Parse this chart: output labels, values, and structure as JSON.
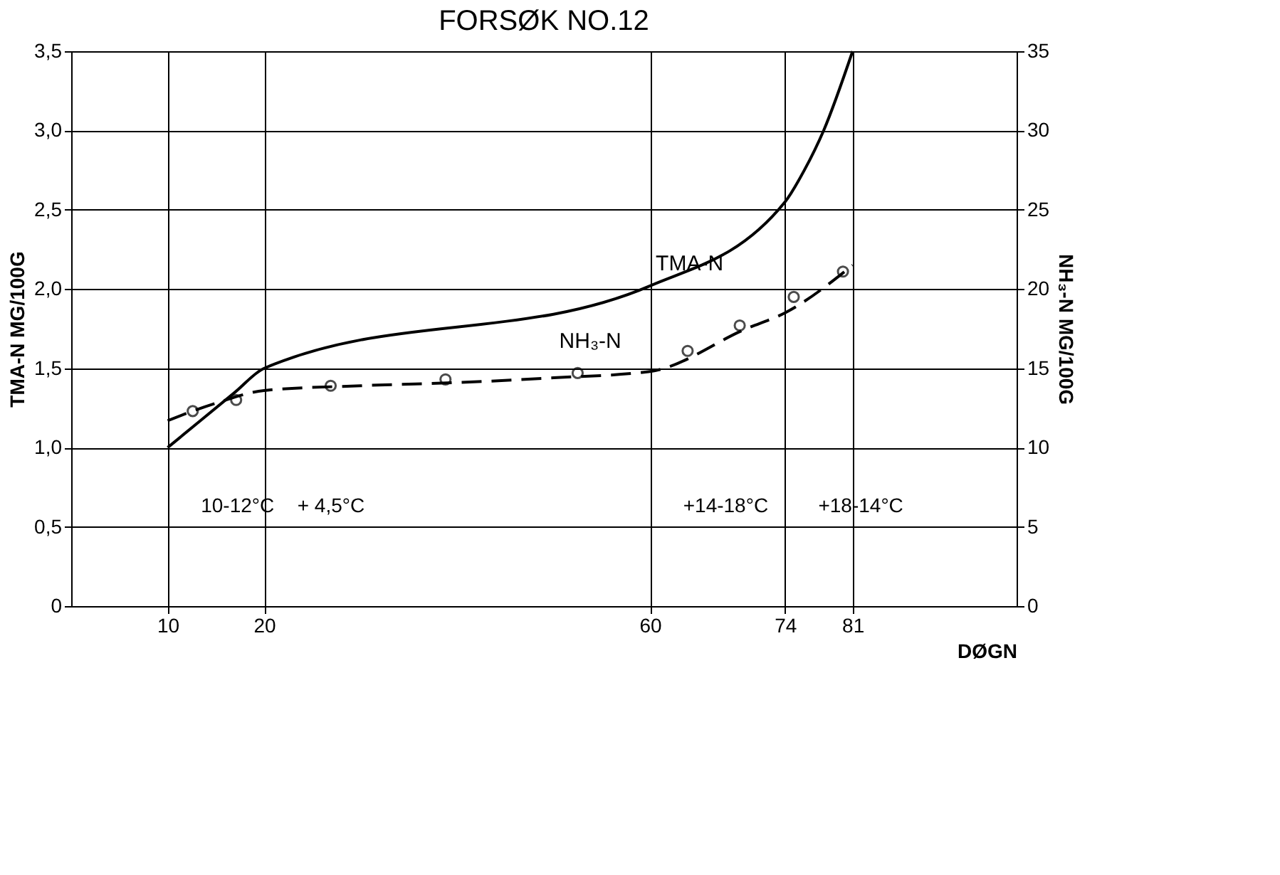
{
  "chart_data": {
    "type": "line",
    "title": "FORSØK NO.12",
    "xlabel": "DØGN",
    "ylabel": "TMA-N MG/100G",
    "y2label": "NH₃-N MG/100G",
    "xlim": [
      0,
      98
    ],
    "xticks": [
      10,
      20,
      60,
      74,
      81
    ],
    "ylim": [
      0,
      3.5
    ],
    "yticks": [
      0,
      {
        "value": 0.5,
        "label": "0,5"
      },
      {
        "value": 1.0,
        "label": "1,0"
      },
      {
        "value": 1.5,
        "label": "1,5"
      },
      {
        "value": 2.0,
        "label": "2,0"
      },
      {
        "value": 2.5,
        "label": "2,5"
      },
      {
        "value": 3.0,
        "label": "3,0"
      },
      {
        "value": 3.5,
        "label": "3,5"
      }
    ],
    "y2lim": [
      0,
      35
    ],
    "y2ticks": [
      0,
      5,
      10,
      15,
      20,
      25,
      30,
      35
    ],
    "grid": true,
    "legend": false,
    "series": [
      {
        "name": "TMA-N",
        "color": "#000000",
        "line_style": "solid",
        "marker": "none",
        "x": [
          10,
          17,
          20,
          60,
          74,
          76,
          78,
          81
        ],
        "values": [
          1.0,
          1.35,
          1.5,
          2.02,
          2.55,
          2.75,
          3.0,
          3.5
        ]
      },
      {
        "name": "NH₃-N",
        "axis": "y2",
        "color": "#000000",
        "line_style": "dashed",
        "marker": "none",
        "x": [
          10,
          15,
          20,
          30,
          40,
          50,
          60,
          70,
          74,
          81
        ],
        "values": [
          11.7,
          12.8,
          13.6,
          13.9,
          14.1,
          14.4,
          14.8,
          17.5,
          18.5,
          21.5
        ]
      },
      {
        "type": "scatter",
        "axis": "y2",
        "color": "#000000",
        "marker": "circle",
        "x": [
          12.6,
          17.1,
          26.9,
          38.8,
          52.5,
          63.9,
          69.3,
          74.9,
          80.0
        ],
        "values": [
          12.3,
          13.0,
          13.9,
          14.3,
          14.7,
          16.1,
          17.7,
          19.5,
          21.1
        ]
      }
    ],
    "annotations": [
      "10-12°C",
      "+ 4,5°C",
      "+14-18°C",
      "+18-14°C"
    ]
  }
}
